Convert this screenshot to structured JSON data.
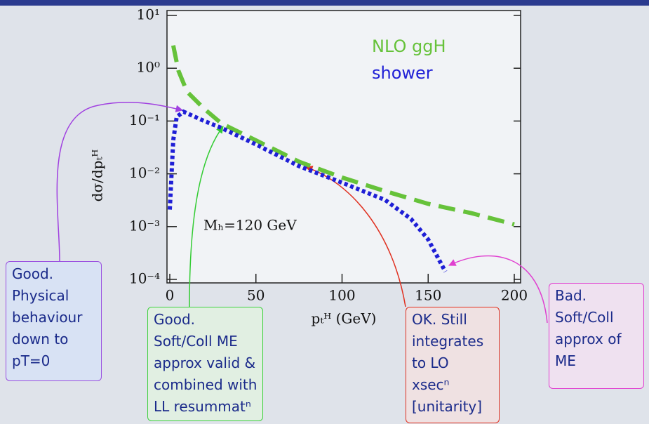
{
  "chart_data": {
    "type": "line",
    "y_label": "dσ/dpₜᴴ",
    "x_label": "pₜᴴ (GeV)",
    "annotation": "Mₕ=120 GeV",
    "xlim": [
      0,
      200
    ],
    "xticks": [
      0,
      50,
      100,
      150,
      200
    ],
    "ylim": [
      0.0001,
      10
    ],
    "log_y": true,
    "yticks": [
      {
        "value": 10,
        "label": "10¹"
      },
      {
        "value": 1,
        "label": "10⁰"
      },
      {
        "value": 0.1,
        "label": "10⁻¹"
      },
      {
        "value": 0.01,
        "label": "10⁻²"
      },
      {
        "value": 0.001,
        "label": "10⁻³"
      },
      {
        "value": 0.0001,
        "label": "10⁻⁴"
      }
    ],
    "series": [
      {
        "name": "NLO ggH",
        "color": "#66c23a",
        "style": "dashed",
        "x": [
          2,
          5,
          10,
          20,
          30,
          50,
          75,
          100,
          125,
          150,
          175,
          200
        ],
        "values": [
          2.7,
          0.9,
          0.36,
          0.17,
          0.09,
          0.043,
          0.017,
          0.0085,
          0.0047,
          0.0027,
          0.0018,
          0.0011
        ]
      },
      {
        "name": "shower",
        "color": "#1f1fd6",
        "style": "dotted",
        "x": [
          0,
          2,
          4,
          8,
          20,
          30,
          50,
          75,
          100,
          125,
          140,
          150,
          160
        ],
        "values": [
          0.0021,
          0.043,
          0.12,
          0.15,
          0.1,
          0.074,
          0.036,
          0.014,
          0.0068,
          0.0032,
          0.0014,
          0.00057,
          0.00014
        ]
      }
    ]
  },
  "notes": [
    {
      "lines": [
        "Good.",
        "Physical",
        "behaviour",
        "down to",
        "pT=0"
      ]
    },
    {
      "lines": [
        "Good.",
        "Soft/Coll ME",
        "approx valid &",
        "combined with",
        "LL resummatⁿ"
      ]
    },
    {
      "lines": [
        "OK. Still",
        "integrates",
        "to LO",
        "xsecⁿ",
        "[unitarity]"
      ]
    },
    {
      "lines": [
        "Bad.",
        "Soft/Coll",
        "approx of",
        "ME"
      ]
    }
  ]
}
